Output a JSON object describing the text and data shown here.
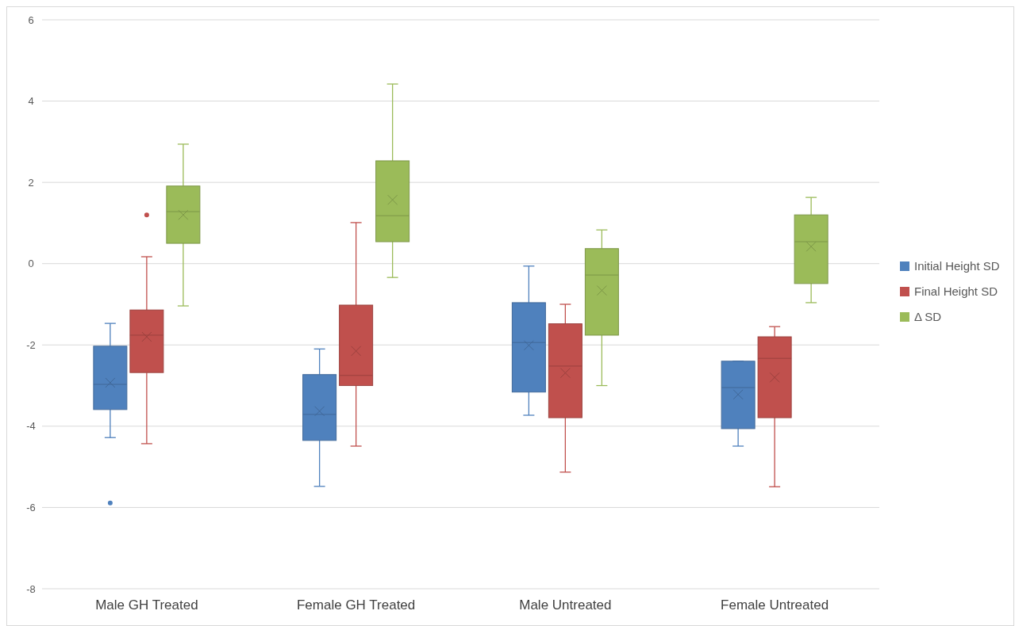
{
  "chart_data": {
    "type": "box",
    "categories": [
      "Male GH Treated",
      "Female GH Treated",
      "Male Untreated",
      "Female Untreated"
    ],
    "ylim": [
      -8,
      6
    ],
    "yticks": [
      -8,
      -6,
      -4,
      -2,
      0,
      2,
      4,
      6
    ],
    "grid": "y",
    "legend": "right",
    "series": [
      {
        "name": "Initial Height SD",
        "color": "#4f81bd",
        "boxes": [
          {
            "low": -4.28,
            "q1": -3.59,
            "median": -2.97,
            "q3": -2.03,
            "high": -1.47,
            "mean": -2.93,
            "outliers": [
              -5.89
            ]
          },
          {
            "low": -5.48,
            "q1": -4.35,
            "median": -3.71,
            "q3": -2.73,
            "high": -2.1,
            "mean": -3.63
          },
          {
            "low": -3.73,
            "q1": -3.16,
            "median": -1.94,
            "q3": -0.96,
            "high": -0.06,
            "mean": -2.01
          },
          {
            "low": -4.49,
            "q1": -4.06,
            "median": -3.05,
            "q3": -2.4,
            "high": -2.4,
            "mean": -3.22
          }
        ]
      },
      {
        "name": "Final Height SD",
        "color": "#c0504d",
        "boxes": [
          {
            "low": -4.43,
            "q1": -2.68,
            "median": -1.76,
            "q3": -1.14,
            "high": 0.17,
            "mean": -1.8,
            "outliers": [
              1.2
            ]
          },
          {
            "low": -4.49,
            "q1": -3.0,
            "median": -2.75,
            "q3": -1.02,
            "high": 1.01,
            "mean": -2.15
          },
          {
            "low": -5.13,
            "q1": -3.79,
            "median": -2.52,
            "q3": -1.48,
            "high": -1.0,
            "mean": -2.69
          },
          {
            "low": -5.49,
            "q1": -3.79,
            "median": -2.33,
            "q3": -1.8,
            "high": -1.55,
            "mean": -2.8
          }
        ]
      },
      {
        "name": "Δ SD",
        "color": "#9bbb59",
        "boxes": [
          {
            "low": -1.04,
            "q1": 0.5,
            "median": 1.28,
            "q3": 1.91,
            "high": 2.94,
            "mean": 1.2
          },
          {
            "low": -0.34,
            "q1": 0.54,
            "median": 1.18,
            "q3": 2.53,
            "high": 4.42,
            "mean": 1.57
          },
          {
            "low": -3.0,
            "q1": -1.76,
            "median": -0.28,
            "q3": 0.37,
            "high": 0.83,
            "mean": -0.66
          },
          {
            "low": -0.96,
            "q1": -0.49,
            "median": 0.54,
            "q3": 1.2,
            "high": 1.63,
            "mean": 0.42
          }
        ]
      }
    ]
  }
}
